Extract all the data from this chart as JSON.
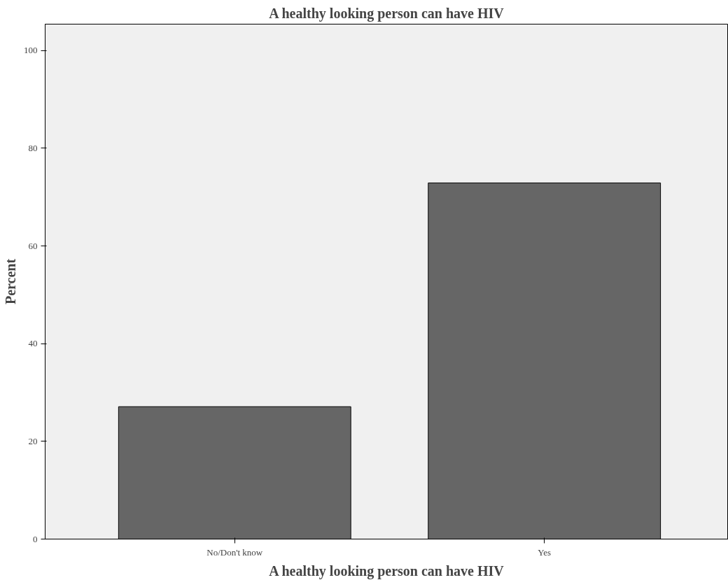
{
  "chart_data": {
    "type": "bar",
    "title": "A healthy looking person can have HIV",
    "xlabel": "A healthy looking person can have HIV",
    "ylabel": "Percent",
    "categories": [
      "No/Don't know",
      "Yes"
    ],
    "values": [
      27.1,
      72.9
    ],
    "color": "#666666",
    "ylim": [
      0,
      105.4
    ],
    "yticks": [
      0,
      20,
      40,
      60,
      80,
      100
    ],
    "grid": false
  }
}
